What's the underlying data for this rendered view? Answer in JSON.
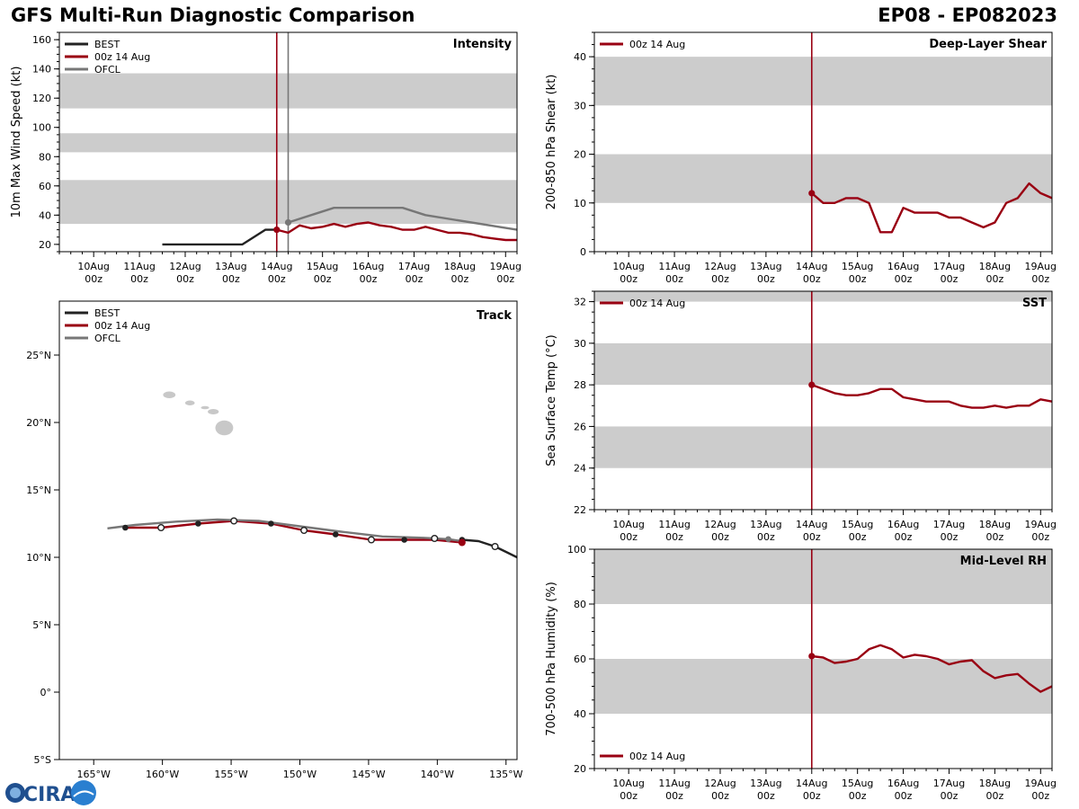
{
  "header": {
    "title_left": "GFS Multi-Run Diagnostic Comparison",
    "title_right": "EP08 - EP082023"
  },
  "colors": {
    "best": "#222222",
    "run": "#990012",
    "ofcl": "#777777",
    "band": "#cccccc",
    "land": "#c8c8c8"
  },
  "logo": {
    "text": "CIRA"
  },
  "time_axis": {
    "tick_labels": [
      [
        "10Aug",
        "00z"
      ],
      [
        "11Aug",
        "00z"
      ],
      [
        "12Aug",
        "00z"
      ],
      [
        "13Aug",
        "00z"
      ],
      [
        "14Aug",
        "00z"
      ],
      [
        "15Aug",
        "00z"
      ],
      [
        "16Aug",
        "00z"
      ],
      [
        "17Aug",
        "00z"
      ],
      [
        "18Aug",
        "00z"
      ],
      [
        "19Aug",
        "00z"
      ]
    ],
    "tick_days": [
      10,
      11,
      12,
      13,
      14,
      15,
      16,
      17,
      18,
      19
    ],
    "xlim": [
      9.25,
      19.25
    ],
    "init_day": 14.0
  },
  "chart_data": [
    {
      "id": "intensity",
      "type": "line",
      "title": "Intensity",
      "ylabel": "10m Max Wind Speed (kt)",
      "ylim": [
        15,
        165
      ],
      "yticks": [
        20,
        40,
        60,
        80,
        100,
        120,
        140,
        160
      ],
      "bands": [
        [
          34,
          64
        ],
        [
          83,
          96
        ],
        [
          113,
          137
        ]
      ],
      "ofcl_init_day": 14.25,
      "legend": [
        "BEST",
        "00z 14 Aug",
        "OFCL"
      ],
      "series": [
        {
          "name": "BEST",
          "x": [
            11.5,
            13.25,
            13.75,
            14.0
          ],
          "y": [
            20,
            20,
            30,
            30
          ]
        },
        {
          "name": "00z 14 Aug",
          "x": [
            14.0,
            14.25,
            14.5,
            14.75,
            15.0,
            15.25,
            15.5,
            15.75,
            16.0,
            16.25,
            16.5,
            16.75,
            17.0,
            17.25,
            17.5,
            17.75,
            18.0,
            18.25,
            18.5,
            18.75,
            19.0,
            19.25
          ],
          "y": [
            30,
            28,
            33,
            31,
            32,
            34,
            32,
            34,
            35,
            33,
            32,
            30,
            30,
            32,
            30,
            28,
            28,
            27,
            25,
            24,
            23,
            23
          ]
        },
        {
          "name": "OFCL",
          "x": [
            14.25,
            14.75,
            15.25,
            16.25,
            16.75,
            17.25,
            19.25
          ],
          "y": [
            35,
            40,
            45,
            45,
            45,
            40,
            30
          ]
        }
      ]
    },
    {
      "id": "shear",
      "type": "line",
      "title": "Deep-Layer Shear",
      "ylabel": "200-850 hPa Shear (kt)",
      "ylim": [
        0,
        45
      ],
      "yticks": [
        0,
        10,
        20,
        30,
        40
      ],
      "bands": [
        [
          10,
          20
        ],
        [
          30,
          40
        ]
      ],
      "legend": [
        "00z 14 Aug"
      ],
      "series": [
        {
          "name": "00z 14 Aug",
          "x": [
            14.0,
            14.25,
            14.5,
            14.75,
            15.0,
            15.25,
            15.5,
            15.75,
            16.0,
            16.25,
            16.5,
            16.75,
            17.0,
            17.25,
            17.5,
            17.75,
            18.0,
            18.25,
            18.5,
            18.75,
            19.0,
            19.25
          ],
          "y": [
            12,
            10,
            10,
            11,
            11,
            10,
            4,
            4,
            9,
            8,
            8,
            8,
            7,
            7,
            6,
            5,
            6,
            10,
            11,
            14,
            12,
            11
          ]
        }
      ]
    },
    {
      "id": "sst",
      "type": "line",
      "title": "SST",
      "ylabel": "Sea Surface Temp (°C)",
      "ylim": [
        22,
        32.5
      ],
      "yticks": [
        22,
        24,
        26,
        28,
        30,
        32
      ],
      "bands": [
        [
          24,
          26
        ],
        [
          28,
          30
        ],
        [
          32,
          34
        ]
      ],
      "legend": [
        "00z 14 Aug"
      ],
      "series": [
        {
          "name": "00z 14 Aug",
          "x": [
            14.0,
            14.25,
            14.5,
            14.75,
            15.0,
            15.25,
            15.5,
            15.75,
            16.0,
            16.25,
            16.5,
            16.75,
            17.0,
            17.25,
            17.5,
            17.75,
            18.0,
            18.25,
            18.5,
            18.75,
            19.0,
            19.25
          ],
          "y": [
            28.0,
            27.8,
            27.6,
            27.5,
            27.5,
            27.6,
            27.8,
            27.8,
            27.4,
            27.3,
            27.2,
            27.2,
            27.2,
            27.0,
            26.9,
            26.9,
            27.0,
            26.9,
            27.0,
            27.0,
            27.3,
            27.2
          ]
        }
      ]
    },
    {
      "id": "rh",
      "type": "line",
      "title": "Mid-Level RH",
      "ylabel": "700-500 hPa Humidity (%)",
      "ylim": [
        20,
        100
      ],
      "yticks": [
        20,
        40,
        60,
        80,
        100
      ],
      "bands": [
        [
          40,
          60
        ],
        [
          80,
          100
        ]
      ],
      "legend": [
        "00z 14 Aug"
      ],
      "series": [
        {
          "name": "00z 14 Aug",
          "x": [
            14.0,
            14.25,
            14.5,
            14.75,
            15.0,
            15.25,
            15.5,
            15.75,
            16.0,
            16.25,
            16.5,
            16.75,
            17.0,
            17.25,
            17.5,
            17.75,
            18.0,
            18.25,
            18.5,
            18.75,
            19.0,
            19.25
          ],
          "y": [
            61,
            60.5,
            58.5,
            59,
            60,
            63.5,
            65,
            63.5,
            60.5,
            61.5,
            61,
            60,
            58,
            59,
            59.5,
            55.5,
            53,
            54,
            54.5,
            51,
            48,
            50
          ]
        }
      ]
    },
    {
      "id": "track",
      "type": "scatter",
      "title": "Track",
      "legend": [
        "BEST",
        "00z 14 Aug",
        "OFCL"
      ],
      "xlim": [
        -167.5,
        -134.2
      ],
      "ylim": [
        -5,
        29
      ],
      "lon_ticks": [
        -165,
        -160,
        -155,
        -150,
        -145,
        -140,
        -135
      ],
      "lon_labels": [
        "165°W",
        "160°W",
        "155°W",
        "150°W",
        "145°W",
        "140°W",
        "135°W"
      ],
      "lat_ticks": [
        -5,
        0,
        5,
        10,
        15,
        20,
        25
      ],
      "lat_labels": [
        "5°S",
        "0°",
        "5°N",
        "10°N",
        "15°N",
        "20°N",
        "25°N"
      ],
      "series": [
        {
          "name": "BEST",
          "lon": [
            -134.2,
            -135.0,
            -135.8,
            -137.0,
            -138.2
          ],
          "lat": [
            10.0,
            10.4,
            10.8,
            11.2,
            11.3
          ]
        },
        {
          "name": "00z 14 Aug",
          "lon": [
            -138.2,
            -140.2,
            -142.4,
            -144.8,
            -147.4,
            -149.7,
            -152.1,
            -154.8,
            -157.4,
            -160.1,
            -162.7
          ],
          "lat": [
            11.1,
            11.3,
            11.3,
            11.3,
            11.7,
            12.0,
            12.5,
            12.7,
            12.5,
            12.2,
            12.2
          ]
        },
        {
          "name": "OFCL",
          "lon": [
            -138.2,
            -139.2,
            -141.0,
            -144.0,
            -147.0,
            -150.0,
            -153.0,
            -156.0,
            -159.0,
            -162.0,
            -164.0
          ],
          "lat": [
            11.2,
            11.35,
            11.45,
            11.55,
            11.9,
            12.3,
            12.7,
            12.8,
            12.65,
            12.4,
            12.15
          ]
        }
      ],
      "points": {
        "filled": {
          "lon": [
            -138.2,
            -142.4,
            -147.4,
            -152.1,
            -157.4,
            -162.7
          ],
          "lat": [
            11.3,
            11.3,
            11.7,
            12.5,
            12.5,
            12.2
          ]
        },
        "open": {
          "lon": [
            -135.8,
            -140.2,
            -144.8,
            -149.7,
            -154.8,
            -160.1
          ],
          "lat": [
            10.8,
            11.4,
            11.3,
            12.0,
            12.7,
            12.2
          ]
        }
      }
    }
  ]
}
